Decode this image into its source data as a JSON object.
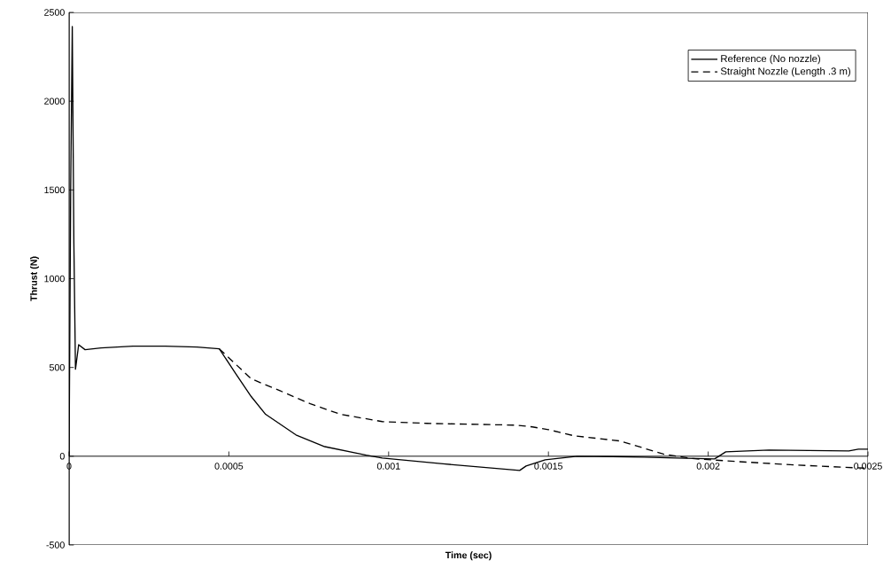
{
  "chart_data": {
    "type": "line",
    "xlabel": "Time (sec)",
    "ylabel": "Thrust (N)",
    "xlim": [
      0,
      0.0025
    ],
    "ylim": [
      -500,
      2500
    ],
    "xticks": [
      0,
      0.0005,
      0.001,
      0.0015,
      0.002,
      0.0025
    ],
    "yticks": [
      -500,
      0,
      500,
      1000,
      1500,
      2000,
      2500
    ],
    "grid": false,
    "legend": "top right",
    "marker": "none",
    "series": [
      {
        "name": "Reference (No nozzle)",
        "color": "#000000",
        "line_style": "solid",
        "x": [
          0,
          5e-06,
          1e-05,
          1.5e-05,
          2e-05,
          3e-05,
          5e-05,
          0.0001,
          0.0002,
          0.0003,
          0.0004,
          0.00047,
          0.00052,
          0.00057,
          0.000615,
          0.00071,
          0.0008,
          0.00093,
          0.00098,
          0.00117,
          0.00141,
          0.00143,
          0.00149,
          0.00159,
          0.0017,
          0.0018,
          0.0019,
          0.00202,
          0.002055,
          0.00219,
          0.00244,
          0.00247,
          0.0025
        ],
        "values": [
          0,
          1500,
          2420,
          1200,
          490,
          628,
          600,
          610,
          620,
          620,
          615,
          605,
          469,
          336,
          236,
          120,
          54,
          6,
          -10,
          -43,
          -80,
          -55,
          -20,
          0,
          -2,
          -5,
          -10,
          -15,
          25,
          35,
          30,
          40,
          40
        ]
      },
      {
        "name": "Straight Nozzle (Length .3 m)",
        "color": "#000000",
        "line_style": "dashed",
        "x": [
          0.00047,
          0.00057,
          0.00066,
          0.000755,
          0.00085,
          0.00098,
          0.00112,
          0.0014,
          0.00145,
          0.0015,
          0.00158,
          0.001724,
          0.00186,
          0.00195,
          0.00209,
          0.00228,
          0.00246,
          0.0025
        ],
        "values": [
          605,
          436,
          369,
          295,
          236,
          195,
          185,
          175,
          165,
          150,
          115,
          86,
          12,
          -13,
          -30,
          -50,
          -65,
          -68
        ]
      }
    ]
  }
}
